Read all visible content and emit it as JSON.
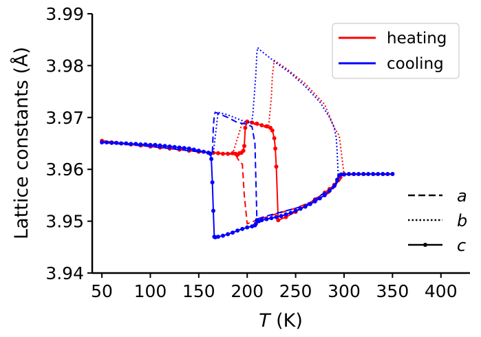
{
  "chart_data": {
    "type": "line",
    "xlabel_italic": "T",
    "xlabel_rest": " (K)",
    "ylabel": "Lattice constants (Å)",
    "xlim": [
      40,
      430
    ],
    "ylim": [
      3.94,
      3.99
    ],
    "xticks": [
      50,
      100,
      150,
      200,
      250,
      300,
      350,
      400
    ],
    "yticks": [
      3.94,
      3.95,
      3.96,
      3.97,
      3.98,
      3.99
    ],
    "xtick_labels": [
      "50",
      "100",
      "150",
      "200",
      "250",
      "300",
      "350",
      "400"
    ],
    "ytick_labels": [
      "3.94",
      "3.95",
      "3.96",
      "3.97",
      "3.98",
      "3.99"
    ],
    "grid": false,
    "colors": {
      "heating": "#ff0000",
      "cooling": "#0000ff",
      "axis": "#000000"
    },
    "legend_color": {
      "placement": "top-right",
      "entries": [
        {
          "label": "heating",
          "color": "#ff0000"
        },
        {
          "label": "cooling",
          "color": "#0000ff"
        }
      ]
    },
    "legend_style": {
      "placement": "lower-right",
      "entries": [
        {
          "label": "a",
          "dash": "dashed"
        },
        {
          "label": "b",
          "dash": "dotted"
        },
        {
          "label": "c",
          "dash": "solid-marker"
        }
      ]
    },
    "series": [
      {
        "name": "heating",
        "param": "a",
        "color": "#ff0000",
        "dash": "dashed",
        "markers": false,
        "x": [
          50,
          100,
          150,
          165,
          180,
          188,
          192,
          195,
          197,
          200,
          210,
          220,
          230,
          250,
          270,
          285,
          292,
          296,
          300,
          350
        ],
        "y": [
          3.9655,
          3.9645,
          3.9635,
          3.9632,
          3.963,
          3.9628,
          3.9615,
          3.961,
          3.955,
          3.9495,
          3.9502,
          3.9508,
          3.9514,
          3.9525,
          3.954,
          3.9555,
          3.957,
          3.958,
          3.959,
          3.959
        ]
      },
      {
        "name": "heating",
        "param": "b",
        "color": "#ff0000",
        "dash": "dotted",
        "markers": false,
        "x": [
          50,
          100,
          150,
          165,
          185,
          195,
          205,
          215,
          222,
          225,
          226,
          228,
          240,
          260,
          280,
          290,
          295,
          298,
          300,
          350
        ],
        "y": [
          3.9655,
          3.9645,
          3.9635,
          3.9632,
          3.963,
          3.969,
          3.9688,
          3.9683,
          3.968,
          3.974,
          3.978,
          3.981,
          3.9795,
          3.9765,
          3.9725,
          3.968,
          3.9665,
          3.962,
          3.959,
          3.959
        ]
      },
      {
        "name": "heating",
        "param": "c",
        "color": "#ff0000",
        "dash": "solid",
        "markers": true,
        "x": [
          50,
          60,
          70,
          80,
          90,
          100,
          110,
          120,
          130,
          140,
          150,
          160,
          165,
          170,
          175,
          180,
          185,
          188,
          190,
          192,
          194,
          196,
          197,
          198,
          200,
          205,
          210,
          215,
          220,
          224,
          226,
          228,
          229,
          230,
          232,
          240,
          250,
          260,
          270,
          280,
          285,
          290,
          293,
          295,
          297,
          300,
          310,
          320,
          330,
          340,
          350
        ],
        "y": [
          3.9655,
          3.9652,
          3.965,
          3.9648,
          3.9646,
          3.9644,
          3.9642,
          3.964,
          3.9638,
          3.9636,
          3.9634,
          3.9632,
          3.9632,
          3.9631,
          3.963,
          3.963,
          3.9631,
          3.963,
          3.9628,
          3.9631,
          3.9632,
          3.9636,
          3.9645,
          3.968,
          3.9692,
          3.969,
          3.9688,
          3.9685,
          3.9683,
          3.968,
          3.9675,
          3.966,
          3.964,
          3.9605,
          3.9502,
          3.9508,
          3.9518,
          3.953,
          3.9542,
          3.9555,
          3.9562,
          3.957,
          3.9578,
          3.9585,
          3.959,
          3.9591,
          3.9591,
          3.9591,
          3.9591,
          3.9591,
          3.9591
        ]
      },
      {
        "name": "cooling",
        "param": "a",
        "color": "#0000ff",
        "dash": "dashed",
        "markers": false,
        "x": [
          350,
          300,
          295,
          293,
          290,
          280,
          260,
          240,
          230,
          220,
          215,
          212,
          210,
          208,
          205,
          200,
          190,
          180,
          170,
          167,
          166,
          165,
          164,
          150,
          100,
          50
        ],
        "y": [
          3.9591,
          3.9591,
          3.959,
          3.9575,
          3.9565,
          3.9555,
          3.953,
          3.952,
          3.9515,
          3.951,
          3.9507,
          3.9505,
          3.9505,
          3.965,
          3.9682,
          3.9687,
          3.969,
          3.97,
          3.9708,
          3.971,
          3.9705,
          3.968,
          3.9632,
          3.9634,
          3.9644,
          3.9652
        ]
      },
      {
        "name": "cooling",
        "param": "b",
        "color": "#0000ff",
        "dash": "dotted",
        "markers": false,
        "x": [
          350,
          300,
          295,
          294,
          293,
          292,
          290,
          285,
          275,
          260,
          245,
          230,
          220,
          212,
          211,
          210,
          209,
          207,
          206,
          205,
          204,
          200,
          180,
          170,
          165,
          150,
          100,
          50
        ],
        "y": [
          3.9591,
          3.9591,
          3.959,
          3.9585,
          3.963,
          3.966,
          3.968,
          3.97,
          3.973,
          3.976,
          3.9785,
          3.9805,
          3.982,
          3.9832,
          3.9835,
          3.9825,
          3.9785,
          3.9735,
          3.971,
          3.9695,
          3.969,
          3.969,
          3.9705,
          3.971,
          3.9632,
          3.9634,
          3.9644,
          3.9652
        ]
      },
      {
        "name": "cooling",
        "param": "c",
        "color": "#0000ff",
        "dash": "solid",
        "markers": true,
        "x": [
          350,
          345,
          340,
          335,
          330,
          325,
          320,
          315,
          310,
          305,
          300,
          297,
          295,
          293,
          290,
          285,
          280,
          275,
          270,
          265,
          260,
          255,
          250,
          245,
          240,
          235,
          230,
          225,
          220,
          215,
          212,
          210,
          209,
          208,
          205,
          200,
          195,
          190,
          185,
          180,
          175,
          170,
          167,
          166,
          165,
          164,
          163,
          162,
          160,
          155,
          150,
          145,
          140,
          135,
          130,
          125,
          120,
          115,
          110,
          105,
          100,
          95,
          90,
          85,
          80,
          75,
          70,
          65,
          60,
          55,
          50
        ],
        "y": [
          3.9591,
          3.9591,
          3.9591,
          3.9591,
          3.9591,
          3.9591,
          3.9591,
          3.9591,
          3.9591,
          3.9591,
          3.959,
          3.959,
          3.9588,
          3.958,
          3.9568,
          3.9559,
          3.955,
          3.9544,
          3.9538,
          3.9533,
          3.9528,
          3.9524,
          3.952,
          3.9516,
          3.9513,
          3.951,
          3.9508,
          3.9506,
          3.9504,
          3.9502,
          3.95,
          3.9502,
          3.9495,
          3.9492,
          3.949,
          3.9488,
          3.9485,
          3.9482,
          3.9478,
          3.9475,
          3.9472,
          3.947,
          3.9469,
          3.947,
          3.952,
          3.9575,
          3.962,
          3.963,
          3.9632,
          3.9634,
          3.9636,
          3.9638,
          3.964,
          3.9641,
          3.9642,
          3.9643,
          3.9644,
          3.9645,
          3.9646,
          3.9647,
          3.9647,
          3.9648,
          3.9648,
          3.9649,
          3.9649,
          3.965,
          3.965,
          3.9651,
          3.9651,
          3.9652,
          3.9652
        ]
      }
    ]
  }
}
